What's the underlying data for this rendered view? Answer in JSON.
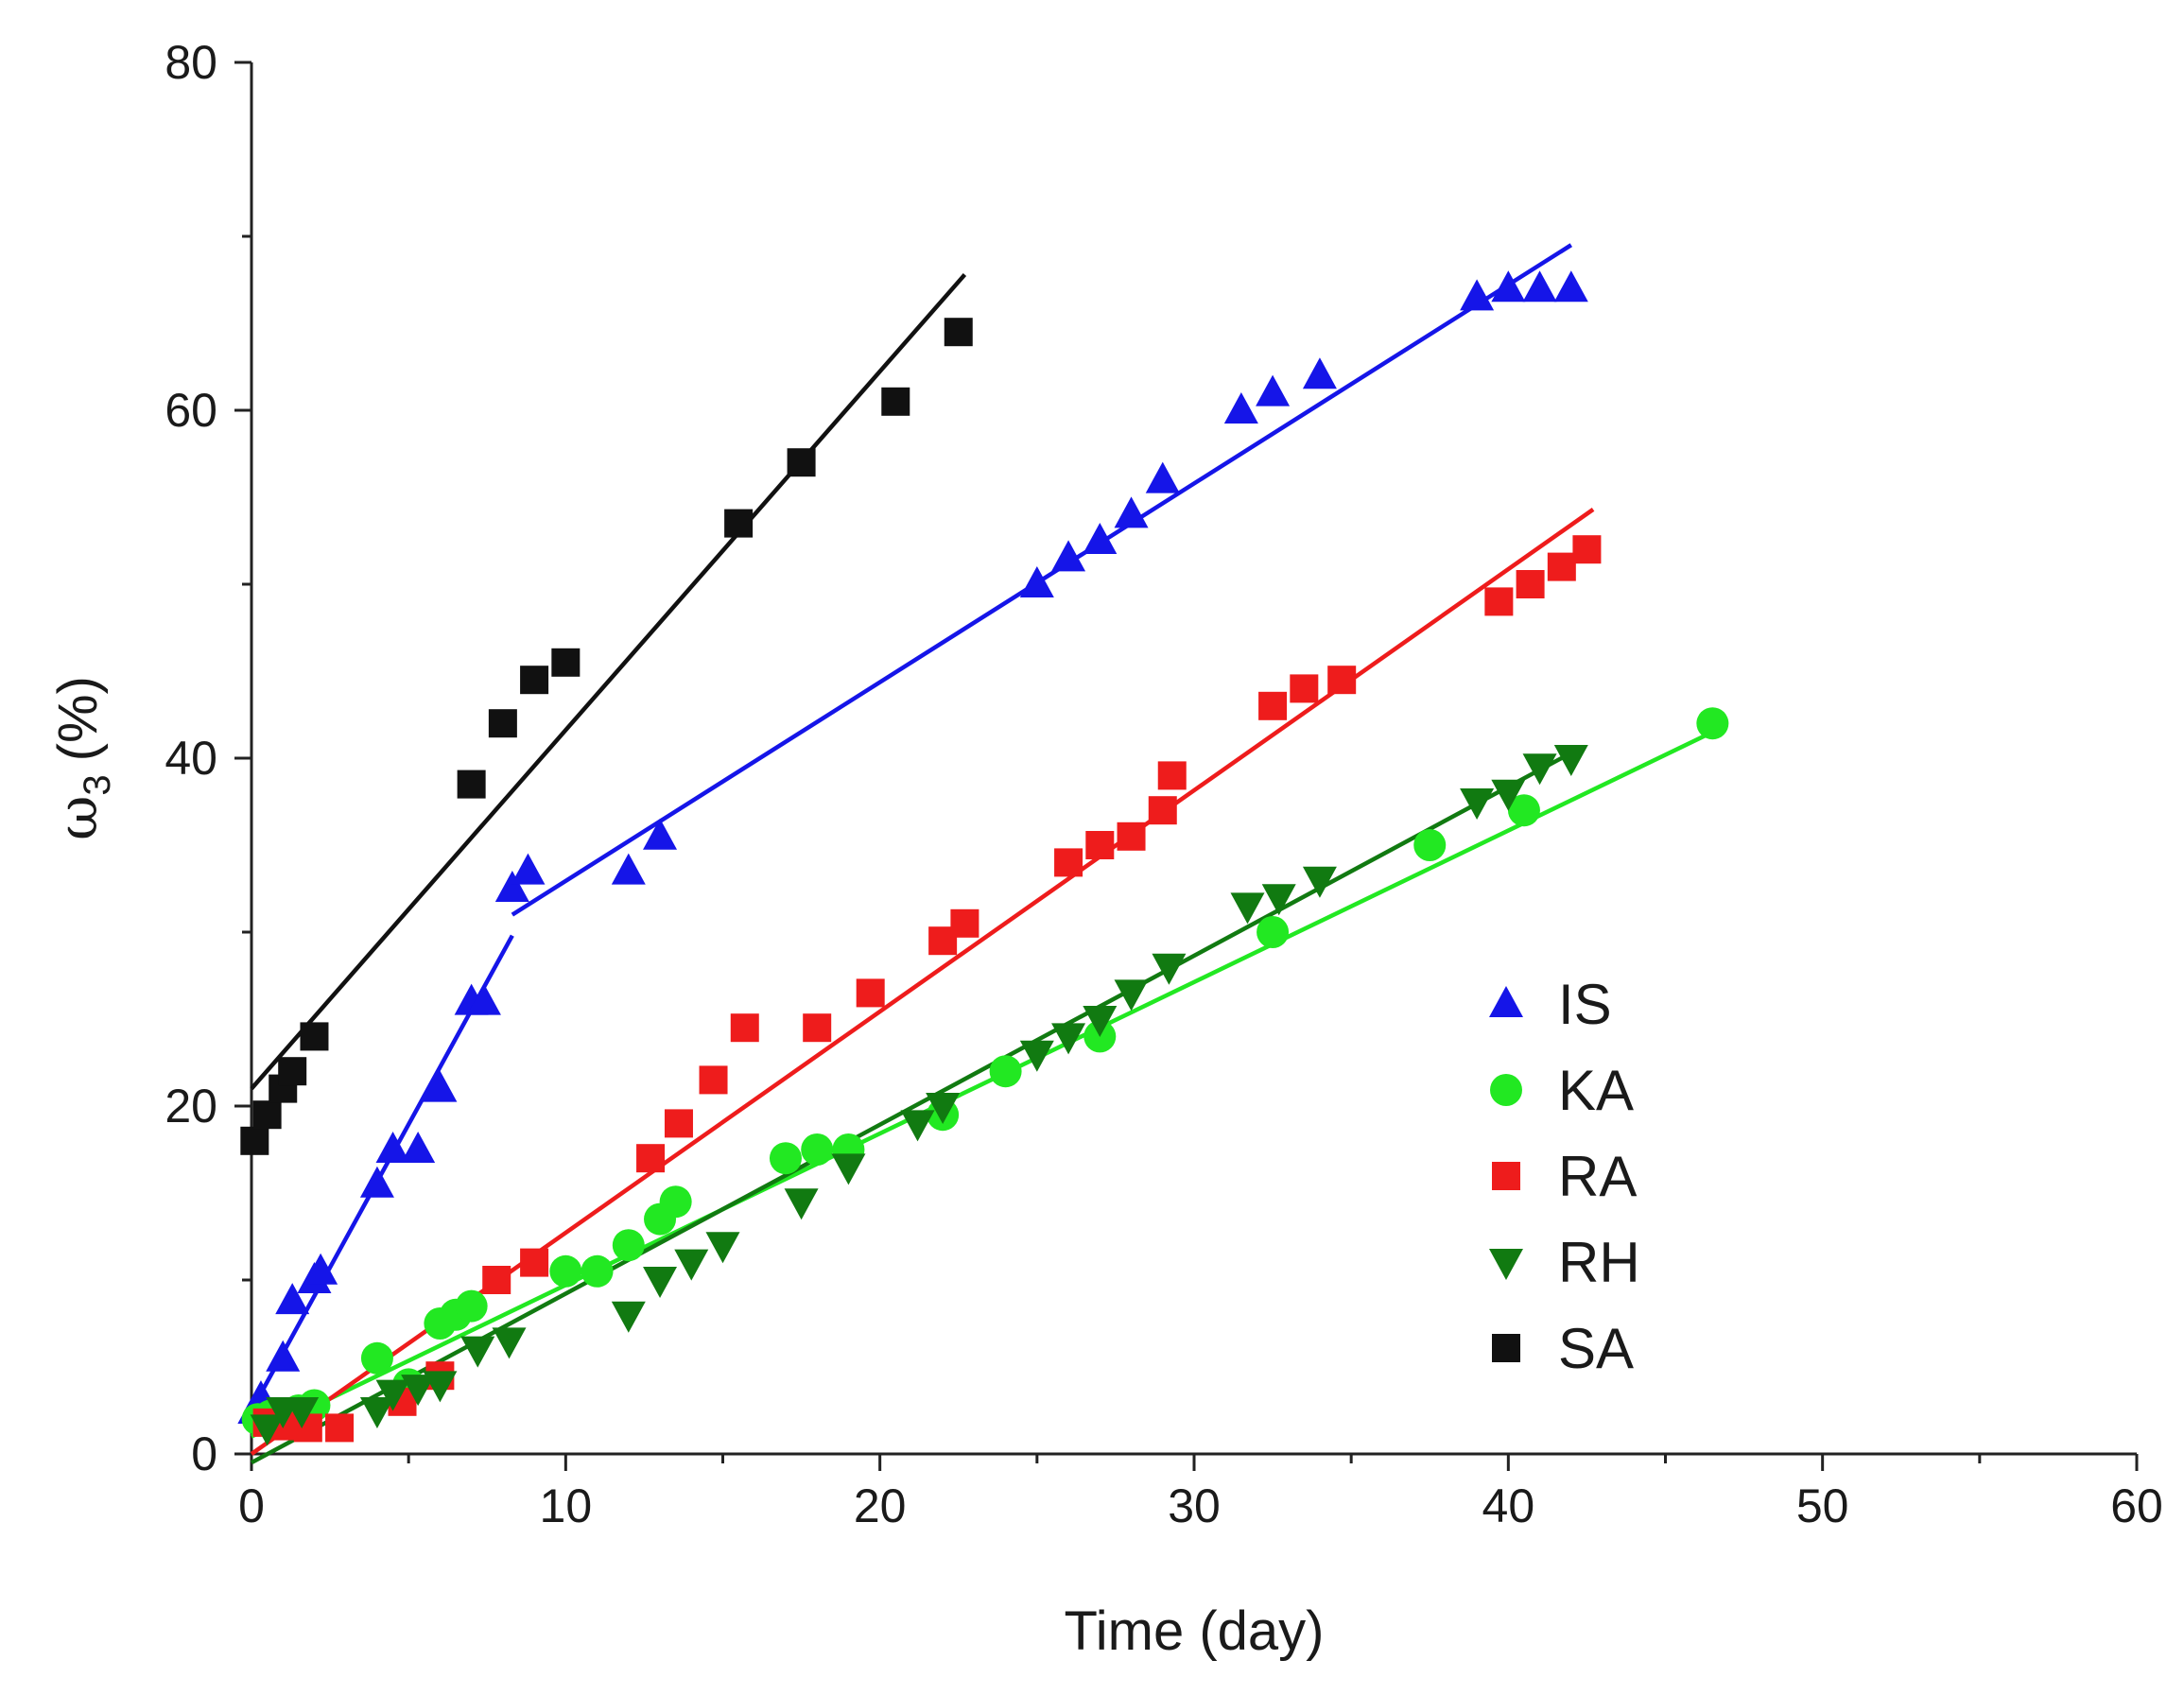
{
  "chart_data": {
    "type": "scatter",
    "title": "",
    "xlabel": "Time (day)",
    "ylabel": {
      "symbol": "ω",
      "subscript": "3",
      "unit": "(%)"
    },
    "xlim": [
      0,
      60
    ],
    "ylim": [
      0,
      80
    ],
    "xticks": [
      0,
      10,
      20,
      30,
      40,
      50,
      60
    ],
    "yticks": [
      0,
      20,
      40,
      60,
      80
    ],
    "legend_position": "right-center",
    "series": [
      {
        "name": "IS",
        "marker": "triangle-up",
        "color": "#1515e8",
        "points": [
          [
            0.1,
            2.5
          ],
          [
            0.3,
            3.2
          ],
          [
            1.0,
            5.5
          ],
          [
            1.3,
            8.8
          ],
          [
            2.0,
            10.0
          ],
          [
            2.2,
            10.5
          ],
          [
            4.0,
            15.5
          ],
          [
            4.5,
            17.5
          ],
          [
            5.3,
            17.5
          ],
          [
            6.0,
            21.0
          ],
          [
            7.0,
            26.0
          ],
          [
            7.4,
            26.0
          ],
          [
            8.3,
            32.5
          ],
          [
            8.8,
            33.5
          ],
          [
            12.0,
            33.5
          ],
          [
            13.0,
            35.5
          ],
          [
            25.0,
            50.0
          ],
          [
            26.0,
            51.5
          ],
          [
            27.0,
            52.5
          ],
          [
            28.0,
            54.0
          ],
          [
            29.0,
            56.0
          ],
          [
            31.5,
            60.0
          ],
          [
            32.5,
            61.0
          ],
          [
            34.0,
            62.0
          ],
          [
            39.0,
            66.5
          ],
          [
            40.0,
            67.0
          ],
          [
            41.0,
            67.0
          ],
          [
            42.0,
            67.0
          ]
        ],
        "fits": [
          {
            "x": [
              0,
              8.3
            ],
            "y": [
              2.5,
              29.8
            ]
          },
          {
            "x": [
              8.3,
              42
            ],
            "y": [
              31.0,
              69.5
            ]
          }
        ]
      },
      {
        "name": "KA",
        "marker": "circle",
        "color": "#22e822",
        "points": [
          [
            0.2,
            2.0
          ],
          [
            0.6,
            2.2
          ],
          [
            1.0,
            2.3
          ],
          [
            1.5,
            2.5
          ],
          [
            2.0,
            2.8
          ],
          [
            4.0,
            5.5
          ],
          [
            5.0,
            4.0
          ],
          [
            6.0,
            7.5
          ],
          [
            6.5,
            8.0
          ],
          [
            7.0,
            8.5
          ],
          [
            10.0,
            10.5
          ],
          [
            11.0,
            10.5
          ],
          [
            12.0,
            12.0
          ],
          [
            13.0,
            13.5
          ],
          [
            13.5,
            14.5
          ],
          [
            17.0,
            17.0
          ],
          [
            18.0,
            17.5
          ],
          [
            19.0,
            17.5
          ],
          [
            22.0,
            19.5
          ],
          [
            24.0,
            22.0
          ],
          [
            27.0,
            24.0
          ],
          [
            32.5,
            30.0
          ],
          [
            37.5,
            35.0
          ],
          [
            40.5,
            37.0
          ],
          [
            46.5,
            42.0
          ]
        ],
        "fits": [
          {
            "x": [
              0,
              46.5
            ],
            "y": [
              1.0,
              41.5
            ]
          }
        ]
      },
      {
        "name": "RA",
        "marker": "square",
        "color": "#ee1c1c",
        "points": [
          [
            0.5,
            1.8
          ],
          [
            1.0,
            1.6
          ],
          [
            1.8,
            1.5
          ],
          [
            2.8,
            1.5
          ],
          [
            4.8,
            3.0
          ],
          [
            6.0,
            4.5
          ],
          [
            7.8,
            10.0
          ],
          [
            9.0,
            11.0
          ],
          [
            12.7,
            17.0
          ],
          [
            13.6,
            19.0
          ],
          [
            14.7,
            21.5
          ],
          [
            15.7,
            24.5
          ],
          [
            18.0,
            24.5
          ],
          [
            19.7,
            26.5
          ],
          [
            22.0,
            29.5
          ],
          [
            22.7,
            30.5
          ],
          [
            26.0,
            34.0
          ],
          [
            27.0,
            35.0
          ],
          [
            28.0,
            35.5
          ],
          [
            29.0,
            37.0
          ],
          [
            29.3,
            39.0
          ],
          [
            32.5,
            43.0
          ],
          [
            33.5,
            44.0
          ],
          [
            34.7,
            44.5
          ],
          [
            39.7,
            49.0
          ],
          [
            40.7,
            50.0
          ],
          [
            41.7,
            51.0
          ],
          [
            42.5,
            52.0
          ]
        ],
        "fits": [
          {
            "x": [
              0,
              42.7
            ],
            "y": [
              0.0,
              54.3
            ]
          }
        ]
      },
      {
        "name": "RH",
        "marker": "triangle-down",
        "color": "#117a11",
        "points": [
          [
            0.5,
            1.5
          ],
          [
            1.0,
            2.5
          ],
          [
            1.6,
            2.5
          ],
          [
            4.0,
            2.5
          ],
          [
            4.5,
            3.5
          ],
          [
            5.3,
            3.8
          ],
          [
            6.0,
            4.0
          ],
          [
            7.2,
            6.0
          ],
          [
            8.2,
            6.5
          ],
          [
            12.0,
            8.0
          ],
          [
            13.0,
            10.0
          ],
          [
            14.0,
            11.0
          ],
          [
            15.0,
            12.0
          ],
          [
            17.5,
            14.5
          ],
          [
            19.0,
            16.5
          ],
          [
            21.2,
            19.0
          ],
          [
            22.0,
            20.0
          ],
          [
            25.0,
            23.0
          ],
          [
            26.0,
            24.0
          ],
          [
            27.0,
            25.0
          ],
          [
            28.0,
            26.5
          ],
          [
            29.2,
            28.0
          ],
          [
            31.7,
            31.5
          ],
          [
            32.7,
            32.0
          ],
          [
            34.0,
            33.0
          ],
          [
            39.0,
            37.5
          ],
          [
            40.0,
            38.0
          ],
          [
            41.0,
            39.5
          ],
          [
            42.0,
            40.0
          ]
        ],
        "fits": [
          {
            "x": [
              0,
              42
            ],
            "y": [
              -0.5,
              40.3
            ]
          }
        ]
      },
      {
        "name": "SA",
        "marker": "square",
        "color": "#111111",
        "points": [
          [
            0.1,
            18.0
          ],
          [
            0.5,
            19.5
          ],
          [
            1.0,
            21.0
          ],
          [
            1.3,
            22.0
          ],
          [
            2.0,
            24.0
          ],
          [
            7.0,
            38.5
          ],
          [
            8.0,
            42.0
          ],
          [
            9.0,
            44.5
          ],
          [
            10.0,
            45.5
          ],
          [
            15.5,
            53.5
          ],
          [
            17.5,
            57.0
          ],
          [
            20.5,
            60.5
          ],
          [
            22.5,
            64.5
          ]
        ],
        "fits": [
          {
            "x": [
              0,
              22.7
            ],
            "y": [
              21.0,
              67.8
            ]
          }
        ]
      }
    ]
  }
}
